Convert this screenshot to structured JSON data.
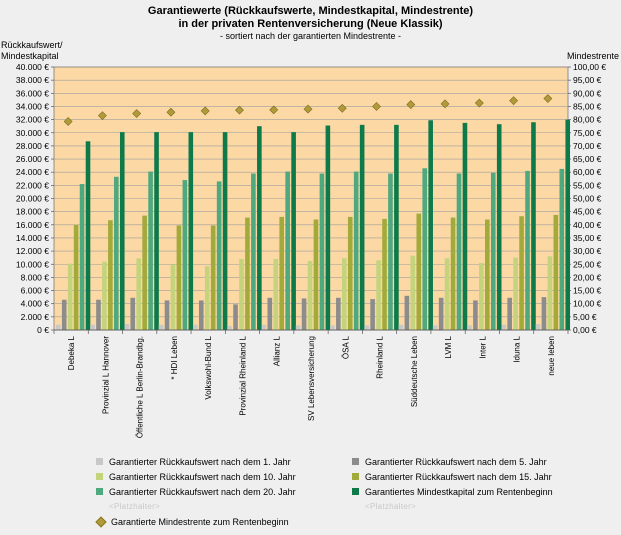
{
  "title_line1": "Garantiewerte (Rückkaufswerte, Mindestkapital, Mindestrente)",
  "title_line2": "in der privaten Rentenversicherung (Neue Klassik)",
  "subtitle": "- sortiert nach der garantierten Mindestrente -",
  "ylabel_left_line1": "Rückkaufswert/",
  "ylabel_left_line2": "Mindestkapital",
  "ylabel_right": "Mindestrente",
  "colors": {
    "plot_bg": "#fcd8a4",
    "grid": "#9e9e9e",
    "y1": "#c8c8c8",
    "y5": "#8c8c8c",
    "y10": "#c4d47c",
    "y15": "#a2aa3a",
    "y20": "#4fa97f",
    "kapital": "#0e7a4a",
    "rente": "#b09a3a"
  },
  "legend": {
    "y1": "Garantierter Rückkaufswert nach dem 1. Jahr",
    "y5": "Garantierter Rückkaufswert nach dem 5. Jahr",
    "y10": "Garantierter Rückkaufswert nach dem 10. Jahr",
    "y15": "Garantierter Rückkaufswert nach dem 15. Jahr",
    "y20": "Garantierter Rückkaufswert nach dem 20. Jahr",
    "kapital": "Garantiertes Mindestkapital zum Rentenbeginn",
    "placeholder": "<Platzhalter>",
    "rente": "Garantierte Mindestrente zum Rentenbeginn"
  },
  "chart_data": {
    "type": "bar",
    "title": "Garantiewerte (Rückkaufswerte, Mindestkapital, Mindestrente) in der privaten Rentenversicherung (Neue Klassik)",
    "subtitle": "- sortiert nach der garantierten Mindestrente -",
    "ylabel": "Rückkaufswert/ Mindestkapital",
    "y2label": "Mindestrente",
    "ylim": [
      0,
      40000
    ],
    "y2lim": [
      0,
      100
    ],
    "yticks": [
      "0 €",
      "2.000 €",
      "4.000 €",
      "6.000 €",
      "8.000 €",
      "10.000 €",
      "12.000 €",
      "14.000 €",
      "16.000 €",
      "18.000 €",
      "20.000 €",
      "22.000 €",
      "24.000 €",
      "26.000 €",
      "28.000 €",
      "30.000 €",
      "32.000 €",
      "34.000 €",
      "36.000 €",
      "38.000 €",
      "40.000 €"
    ],
    "y2ticks": [
      "0,00 €",
      "5,00 €",
      "10,00 €",
      "15,00 €",
      "20,00 €",
      "25,00 €",
      "30,00 €",
      "35,00 €",
      "40,00 €",
      "45,00 €",
      "50,00 €",
      "55,00 €",
      "60,00 €",
      "65,00 €",
      "70,00 €",
      "75,00 €",
      "80,00 €",
      "85,00 €",
      "90,00 €",
      "95,00 €",
      "100,00 €"
    ],
    "grid": true,
    "legend_position": "bottom",
    "categories": [
      "Debeka L",
      "Provinzial L Hannover",
      "Öffentliche L Berlin-Brandbg.",
      "* HDI Leben",
      "Volkswohl-Bund L",
      "Provinzial Rheinland L",
      "Allianz L",
      "SV Lebensversicherung",
      "ÖSA L",
      "Rheinland L",
      "Süddeutsche Leben",
      "LVM L",
      "Inter L",
      "Iduna L",
      "neue leben"
    ],
    "series": [
      {
        "name": "Garantierter Rückkaufswert nach dem 1. Jahr",
        "key": "y1",
        "values": [
          800,
          800,
          900,
          800,
          800,
          600,
          800,
          700,
          700,
          700,
          800,
          700,
          700,
          800,
          900
        ]
      },
      {
        "name": "Garantierter Rückkaufswert nach dem 5. Jahr",
        "key": "y5",
        "values": [
          4600,
          4600,
          4900,
          4500,
          4500,
          3900,
          4900,
          4800,
          4900,
          4700,
          5200,
          4900,
          4500,
          4900,
          5000
        ]
      },
      {
        "name": "Garantierter Rückkaufswert nach dem 10. Jahr",
        "key": "y10",
        "values": [
          10100,
          10400,
          10900,
          10000,
          9700,
          10800,
          10800,
          10500,
          10900,
          10600,
          11300,
          10900,
          10200,
          11000,
          11200
        ]
      },
      {
        "name": "Garantierter Rückkaufswert nach dem 15. Jahr",
        "key": "y15",
        "values": [
          16000,
          16700,
          17400,
          15900,
          15900,
          17100,
          17200,
          16800,
          17200,
          16900,
          17700,
          17100,
          16800,
          17300,
          17500
        ]
      },
      {
        "name": "Garantierter Rückkaufswert nach dem 20. Jahr",
        "key": "y20",
        "values": [
          22200,
          23300,
          24100,
          22800,
          22600,
          23800,
          24100,
          23800,
          24100,
          23800,
          24600,
          23800,
          23900,
          24200,
          24500
        ]
      },
      {
        "name": "Garantiertes Mindestkapital zum Rentenbeginn",
        "key": "kapital",
        "values": [
          28700,
          30100,
          30100,
          30100,
          30100,
          31000,
          30100,
          31100,
          31200,
          31200,
          31900,
          31500,
          31300,
          31600,
          32000
        ]
      }
    ],
    "line_series": {
      "name": "Garantierte Mindestrente zum Rentenbeginn",
      "key": "rente",
      "axis": "right",
      "values": [
        79.3,
        81.5,
        82.3,
        82.8,
        83.3,
        83.6,
        83.7,
        84.0,
        84.3,
        85.0,
        85.7,
        86.0,
        86.3,
        87.2,
        88.0
      ]
    }
  }
}
